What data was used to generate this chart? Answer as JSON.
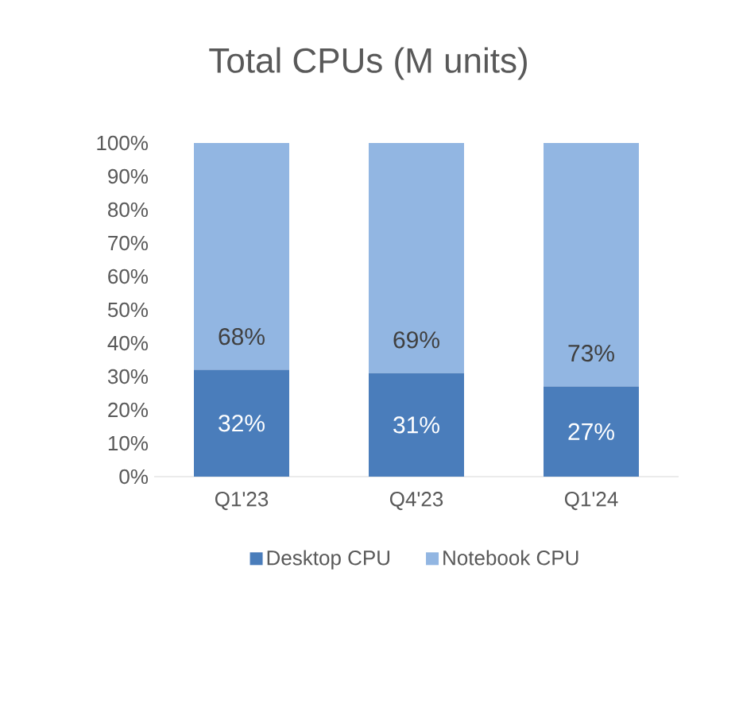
{
  "chart_data": {
    "type": "bar",
    "stacked": true,
    "title": "Total CPUs (M units)",
    "categories": [
      "Q1'23",
      "Q4'23",
      "Q1'24"
    ],
    "series": [
      {
        "name": "Desktop CPU",
        "color": "#4a7dbb",
        "values": [
          32,
          31,
          27
        ],
        "value_labels": [
          "32%",
          "31%",
          "27%"
        ]
      },
      {
        "name": "Notebook CPU",
        "color": "#92b6e2",
        "values": [
          68,
          69,
          73
        ],
        "value_labels": [
          "68%",
          "69%",
          "73%"
        ]
      }
    ],
    "ylim": [
      0,
      100
    ],
    "yticks": [
      {
        "value": 0,
        "label": "0%"
      },
      {
        "value": 10,
        "label": "10%"
      },
      {
        "value": 20,
        "label": "20%"
      },
      {
        "value": 30,
        "label": "30%"
      },
      {
        "value": 40,
        "label": "40%"
      },
      {
        "value": 50,
        "label": "50%"
      },
      {
        "value": 60,
        "label": "60%"
      },
      {
        "value": 70,
        "label": "70%"
      },
      {
        "value": 80,
        "label": "80%"
      },
      {
        "value": 90,
        "label": "90%"
      },
      {
        "value": 100,
        "label": "100%"
      }
    ],
    "legend": "bottom"
  }
}
